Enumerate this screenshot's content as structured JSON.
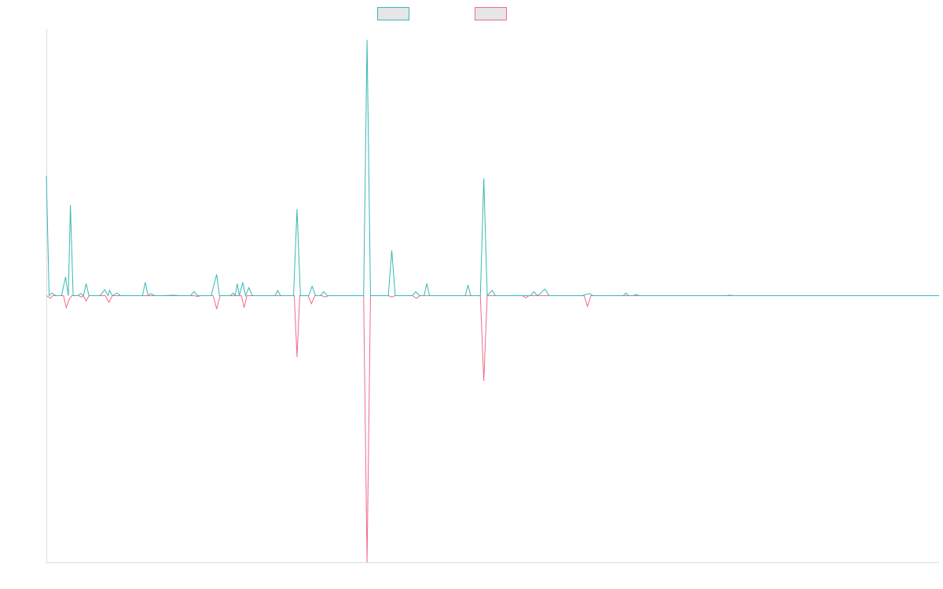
{
  "chart_data": {
    "type": "line",
    "title": "",
    "xlabel": "",
    "ylabel": "",
    "x_range": [
      0,
      130
    ],
    "ylim": [
      -100,
      100
    ],
    "grid": false,
    "legend": "top-center",
    "colors": {
      "series_a": "#36b9b6",
      "series_b": "#f06b8a",
      "axis": "#dddddd",
      "legend_fill": "#e6e6e6"
    },
    "series": [
      {
        "key": "series_a",
        "color": "#36b9b6",
        "points": [
          [
            0,
            45
          ],
          [
            0.4,
            0
          ],
          [
            0.8,
            1.0
          ],
          [
            1.4,
            0
          ],
          [
            2.2,
            0
          ],
          [
            2.8,
            7
          ],
          [
            3.2,
            0
          ],
          [
            3.5,
            34
          ],
          [
            3.9,
            0
          ],
          [
            4.6,
            0
          ],
          [
            5.0,
            0.8
          ],
          [
            5.4,
            0
          ],
          [
            5.8,
            4.5
          ],
          [
            6.2,
            0
          ],
          [
            7.8,
            0
          ],
          [
            8.5,
            2.2
          ],
          [
            9.0,
            0
          ],
          [
            9.2,
            2.0
          ],
          [
            9.6,
            0
          ],
          [
            10.3,
            1.0
          ],
          [
            10.8,
            0
          ],
          [
            14.0,
            0
          ],
          [
            14.4,
            5.0
          ],
          [
            14.8,
            0
          ],
          [
            15.2,
            0.8
          ],
          [
            15.8,
            0
          ],
          [
            17.0,
            0
          ],
          [
            18.5,
            0.2
          ],
          [
            19.5,
            0
          ],
          [
            21.0,
            0
          ],
          [
            21.5,
            1.6
          ],
          [
            22.0,
            0
          ],
          [
            24.0,
            0
          ],
          [
            24.8,
            8.0
          ],
          [
            25.2,
            0
          ],
          [
            26.8,
            0
          ],
          [
            27.2,
            1.0
          ],
          [
            27.5,
            0
          ],
          [
            27.8,
            4.5
          ],
          [
            28.1,
            0
          ],
          [
            28.6,
            5.0
          ],
          [
            29.0,
            0
          ],
          [
            29.5,
            3.0
          ],
          [
            30.0,
            0
          ],
          [
            33.3,
            0
          ],
          [
            33.7,
            2.0
          ],
          [
            34.1,
            0
          ],
          [
            36.0,
            0
          ],
          [
            36.5,
            32.5
          ],
          [
            37.0,
            0
          ],
          [
            38.2,
            0
          ],
          [
            38.7,
            3.5
          ],
          [
            39.2,
            0
          ],
          [
            39.9,
            0
          ],
          [
            40.4,
            1.5
          ],
          [
            40.9,
            0
          ],
          [
            46.2,
            0
          ],
          [
            46.7,
            96.0
          ],
          [
            47.2,
            0
          ],
          [
            49.8,
            0
          ],
          [
            50.3,
            17.0
          ],
          [
            50.8,
            0
          ],
          [
            53.3,
            0
          ],
          [
            53.8,
            1.5
          ],
          [
            54.3,
            0
          ],
          [
            55.0,
            0
          ],
          [
            55.4,
            4.5
          ],
          [
            55.8,
            0
          ],
          [
            61.0,
            0
          ],
          [
            61.4,
            4.0
          ],
          [
            61.8,
            0
          ],
          [
            63.2,
            0
          ],
          [
            63.7,
            44.0
          ],
          [
            64.2,
            0
          ],
          [
            64.9,
            2.0
          ],
          [
            65.4,
            0
          ],
          [
            70.5,
            0
          ],
          [
            71.0,
            1.5
          ],
          [
            71.5,
            0
          ],
          [
            72.0,
            1.0
          ],
          [
            72.6,
            2.5
          ],
          [
            73.2,
            0
          ],
          [
            78.0,
            0
          ],
          [
            79.1,
            0.8
          ],
          [
            79.6,
            0
          ],
          [
            84.0,
            0
          ],
          [
            84.4,
            1.0
          ],
          [
            84.8,
            0
          ],
          [
            85.5,
            0
          ],
          [
            85.9,
            0.5
          ],
          [
            86.3,
            0
          ],
          [
            99.0,
            0
          ],
          [
            99.5,
            0.2
          ],
          [
            100.0,
            0
          ],
          [
            130,
            0
          ]
        ]
      },
      {
        "key": "series_b",
        "color": "#f06b8a",
        "points": [
          [
            0,
            0
          ],
          [
            0.6,
            -1.0
          ],
          [
            0.9,
            0
          ],
          [
            1.4,
            0
          ],
          [
            2.5,
            0
          ],
          [
            2.9,
            -4.5
          ],
          [
            3.3,
            -1.5
          ],
          [
            3.7,
            0
          ],
          [
            4.7,
            0
          ],
          [
            5.1,
            -0.5
          ],
          [
            5.4,
            0
          ],
          [
            5.8,
            -2.0
          ],
          [
            6.2,
            0
          ],
          [
            8.6,
            0
          ],
          [
            9.1,
            -2.5
          ],
          [
            9.6,
            0
          ],
          [
            21.5,
            0
          ],
          [
            22.0,
            -0.3
          ],
          [
            22.5,
            0
          ],
          [
            24.3,
            0
          ],
          [
            24.8,
            -5.0
          ],
          [
            25.3,
            0
          ],
          [
            28.4,
            0
          ],
          [
            28.8,
            -4.5
          ],
          [
            29.2,
            0
          ],
          [
            36.1,
            0
          ],
          [
            36.5,
            -23.0
          ],
          [
            36.9,
            0
          ],
          [
            38.1,
            0
          ],
          [
            38.6,
            -3.0
          ],
          [
            39.1,
            0
          ],
          [
            40.1,
            0
          ],
          [
            40.6,
            -0.5
          ],
          [
            41.1,
            0
          ],
          [
            46.2,
            0
          ],
          [
            46.7,
            -100.0
          ],
          [
            47.2,
            0
          ],
          [
            49.8,
            0
          ],
          [
            50.3,
            -0.5
          ],
          [
            50.8,
            0
          ],
          [
            53.3,
            0
          ],
          [
            53.9,
            -1.0
          ],
          [
            54.4,
            0
          ],
          [
            63.2,
            0
          ],
          [
            63.7,
            -32.0
          ],
          [
            64.2,
            0
          ],
          [
            69.3,
            0
          ],
          [
            69.8,
            -0.8
          ],
          [
            70.3,
            0
          ],
          [
            78.3,
            0
          ],
          [
            78.8,
            -4.0
          ],
          [
            79.3,
            0
          ],
          [
            130,
            0
          ]
        ]
      }
    ]
  }
}
